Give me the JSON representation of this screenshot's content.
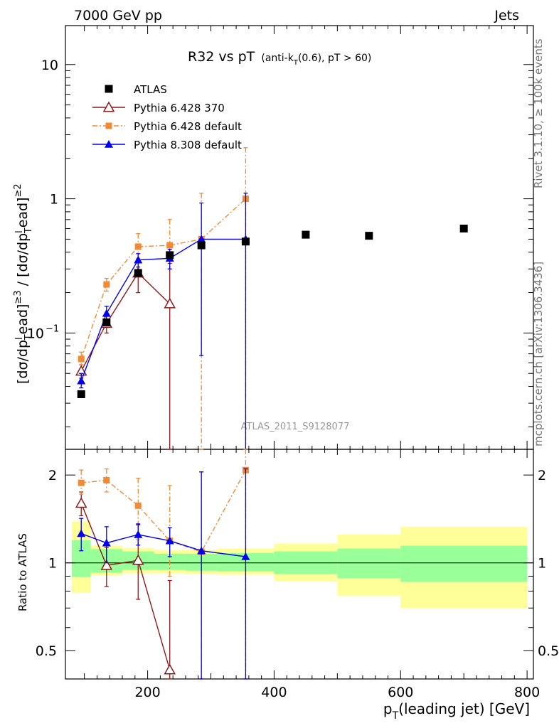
{
  "header": {
    "left": "7000 GeV pp",
    "right": "Jets"
  },
  "side": {
    "rivet": "Rivet 3.1.10, ≥ 100k events",
    "mcplots": "mcplots.cern.ch [arXiv:1306.3436]"
  },
  "watermark": "ATLAS_2011_S9128077",
  "chart_data": {
    "type": "line",
    "title_main": "R32 vs pT",
    "title_sub": "(anti-k_T(0.6), pT > 60)",
    "ylabel": "[dσ/dp_T^lead]^{≥3} / [dσ/dp_T^lead]^{≥2}",
    "ratio_ylabel": "Ratio to ATLAS",
    "xlabel": "p_T(leading jet) [GeV]",
    "xlim": [
      70,
      810
    ],
    "ylim": [
      0.0136,
      19.5
    ],
    "yscale": "log",
    "ratio_ylim": [
      0.4,
      2.45
    ],
    "ratio_yscale": "log",
    "x_ticks": [
      200,
      400,
      600,
      800
    ],
    "y_ticks": [
      {
        "v": 0.1,
        "label": "10",
        "exp": "−1"
      },
      {
        "v": 1,
        "label": "1"
      },
      {
        "v": 10,
        "label": "10"
      }
    ],
    "ratio_ticks": [
      {
        "v": 0.5,
        "label": "0.5"
      },
      {
        "v": 1,
        "label": "1"
      },
      {
        "v": 2,
        "label": "2"
      }
    ],
    "data": {
      "name": "ATLAS",
      "x": [
        95,
        135,
        185,
        235,
        285,
        355,
        450,
        550,
        700
      ],
      "y": [
        0.035,
        0.12,
        0.28,
        0.38,
        0.45,
        0.48,
        0.54,
        0.53,
        0.6
      ]
    },
    "bins": [
      80,
      110,
      160,
      210,
      260,
      310,
      400,
      500,
      600,
      800
    ],
    "ratio_band_inner": [
      [
        0.895,
        1.195
      ],
      [
        0.925,
        1.115
      ],
      [
        0.945,
        1.095
      ],
      [
        0.945,
        1.075
      ],
      [
        0.94,
        1.075
      ],
      [
        0.935,
        1.08
      ],
      [
        0.915,
        1.095
      ],
      [
        0.885,
        1.12
      ],
      [
        0.86,
        1.145
      ]
    ],
    "ratio_band_outer": [
      [
        0.79,
        1.385
      ],
      [
        0.905,
        1.145
      ],
      [
        0.92,
        1.125
      ],
      [
        0.92,
        1.105
      ],
      [
        0.915,
        1.11
      ],
      [
        0.91,
        1.12
      ],
      [
        0.865,
        1.165
      ],
      [
        0.77,
        1.25
      ],
      [
        0.7,
        1.33
      ]
    ],
    "series": [
      {
        "name": "Pythia 6.428 370",
        "color": "#8b1a1a",
        "marker": "triangle-open",
        "dash": "",
        "x": [
          95,
          135,
          185,
          235
        ],
        "y": [
          0.052,
          0.118,
          0.28,
          0.165
        ],
        "err": [
          [
            0.046,
            0.058
          ],
          [
            0.1,
            0.135
          ],
          [
            0.2,
            0.34
          ],
          [
            0.0001,
            0.33
          ]
        ],
        "ratio": [
          1.6,
          0.98,
          1.02,
          0.43
        ],
        "ratio_err": [
          [
            1.45,
            1.75
          ],
          [
            0.83,
            1.13
          ],
          [
            0.75,
            1.35
          ],
          [
            0.0001,
            0.87
          ]
        ]
      },
      {
        "name": "Pythia 6.428 default",
        "color": "#f08a35",
        "marker": "square",
        "dash": "7,3,2,3",
        "x": [
          95,
          135,
          185,
          235,
          285,
          355
        ],
        "y": [
          0.064,
          0.23,
          0.44,
          0.45,
          0.5,
          1.0
        ],
        "err": [
          [
            0.058,
            0.072
          ],
          [
            0.205,
            0.255
          ],
          [
            0.36,
            0.55
          ],
          [
            0.3,
            0.7
          ],
          [
            0.0001,
            1.1
          ],
          [
            0.0001,
            2.4
          ]
        ],
        "ratio": [
          1.88,
          1.92,
          1.57,
          1.19,
          1.09,
          2.08
        ],
        "ratio_err": [
          [
            1.72,
            2.08
          ],
          [
            1.75,
            2.1
          ],
          [
            1.2,
            1.95
          ],
          [
            0.9,
            1.84
          ],
          [
            0.0001,
            2.05
          ],
          [
            0.0001,
            4.9
          ]
        ],
        "legend": true
      },
      {
        "name": "Pythia 8.308 default",
        "color": "#0000ee",
        "marker": "triangle",
        "dash": "",
        "x": [
          95,
          135,
          185,
          235,
          285,
          355
        ],
        "y": [
          0.044,
          0.14,
          0.35,
          0.36,
          0.5,
          0.5
        ],
        "err": [
          [
            0.039,
            0.05
          ],
          [
            0.125,
            0.158
          ],
          [
            0.31,
            0.39
          ],
          [
            0.3,
            0.42
          ],
          [
            0.068,
            0.93
          ],
          [
            0.0001,
            1.1
          ]
        ],
        "ratio": [
          1.26,
          1.17,
          1.25,
          1.19,
          1.1,
          1.05
        ],
        "ratio_err": [
          [
            1.1,
            1.42
          ],
          [
            1.0,
            1.33
          ],
          [
            1.15,
            1.36
          ],
          [
            1.05,
            1.32
          ],
          [
            0.0001,
            2.05
          ],
          [
            0.0001,
            2.1
          ]
        ]
      }
    ]
  }
}
